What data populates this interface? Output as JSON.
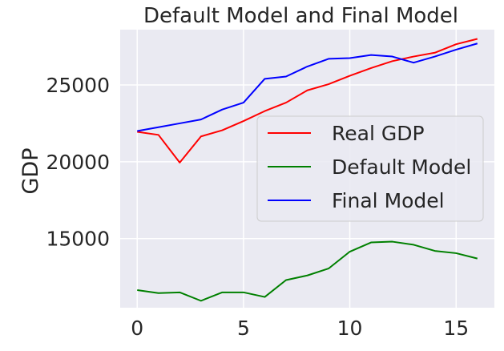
{
  "chart_data": {
    "type": "line",
    "title": "Default Model and Final Model",
    "xlabel": "",
    "ylabel": "GDP",
    "xlim": [
      -0.8,
      16.8
    ],
    "ylim": [
      10500,
      28600
    ],
    "xticks": [
      0,
      5,
      10,
      15
    ],
    "yticks": [
      15000,
      20000,
      25000
    ],
    "grid": true,
    "legend_position": "center-right",
    "x": [
      0,
      1,
      2,
      3,
      4,
      5,
      6,
      7,
      8,
      9,
      10,
      11,
      12,
      13,
      14,
      15,
      16
    ],
    "series": [
      {
        "name": "Real GDP",
        "color": "#ff0000",
        "values": [
          21950,
          21750,
          19950,
          21650,
          22050,
          22650,
          23300,
          23850,
          24650,
          25050,
          25600,
          26100,
          26550,
          26850,
          27100,
          27650,
          28000
        ]
      },
      {
        "name": "Default Model",
        "color": "#008000",
        "values": [
          11650,
          11450,
          11500,
          10950,
          11500,
          11500,
          11200,
          12300,
          12600,
          13050,
          14150,
          14750,
          14800,
          14600,
          14200,
          14050,
          13700
        ]
      },
      {
        "name": "Final Model",
        "color": "#0000ff",
        "values": [
          22000,
          22250,
          22500,
          22750,
          23400,
          23850,
          25400,
          25550,
          26200,
          26700,
          26750,
          26950,
          26850,
          26450,
          26850,
          27300,
          27700
        ]
      }
    ]
  },
  "colors": {
    "plot_background": "#eaeaf2",
    "grid": "#ffffff",
    "text": "#262626",
    "legend_background": "#eaeaf2",
    "legend_border": "#cccccc"
  }
}
